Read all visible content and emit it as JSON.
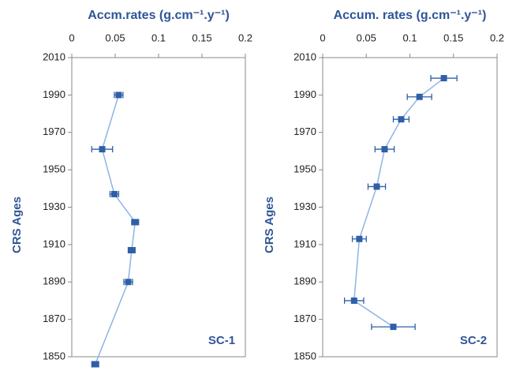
{
  "chart_data": [
    {
      "type": "line",
      "title": "Accm.rates (g.cm⁻¹.y⁻¹)",
      "ylabel": "CRS Ages",
      "annotation": "SC-1",
      "x": [
        0.054,
        0.035,
        0.049,
        0.073,
        0.069,
        0.065,
        0.027
      ],
      "xerr": [
        0.005,
        0.012,
        0.005,
        0.004,
        0.004,
        0.005,
        0.004
      ],
      "y": [
        1990,
        1961,
        1937,
        1922,
        1907,
        1890,
        1846
      ],
      "xlim": [
        0,
        0.2
      ],
      "xticks": [
        0,
        0.05,
        0.1,
        0.15,
        0.2
      ],
      "ylim": [
        1850,
        2010
      ],
      "yticks": [
        1850,
        1870,
        1890,
        1910,
        1930,
        1950,
        1970,
        1990,
        2010
      ],
      "line_color": "#8fb4e3",
      "marker_color": "#2e5fa8"
    },
    {
      "type": "line",
      "title": "Accum. rates (g.cm⁻¹.y⁻¹)",
      "ylabel": "CRS Ages",
      "annotation": "SC-2",
      "x": [
        0.139,
        0.111,
        0.09,
        0.071,
        0.062,
        0.042,
        0.036,
        0.081
      ],
      "xerr": [
        0.015,
        0.014,
        0.009,
        0.011,
        0.01,
        0.008,
        0.011,
        0.025
      ],
      "y": [
        1999,
        1989,
        1977,
        1961,
        1941,
        1913,
        1880,
        1866
      ],
      "xlim": [
        0,
        0.2
      ],
      "xticks": [
        0,
        0.05,
        0.1,
        0.15,
        0.2
      ],
      "ylim": [
        1850,
        2010
      ],
      "yticks": [
        1850,
        1870,
        1890,
        1910,
        1930,
        1950,
        1970,
        1990,
        2010
      ],
      "line_color": "#8fb4e3",
      "marker_color": "#2e5fa8"
    }
  ]
}
